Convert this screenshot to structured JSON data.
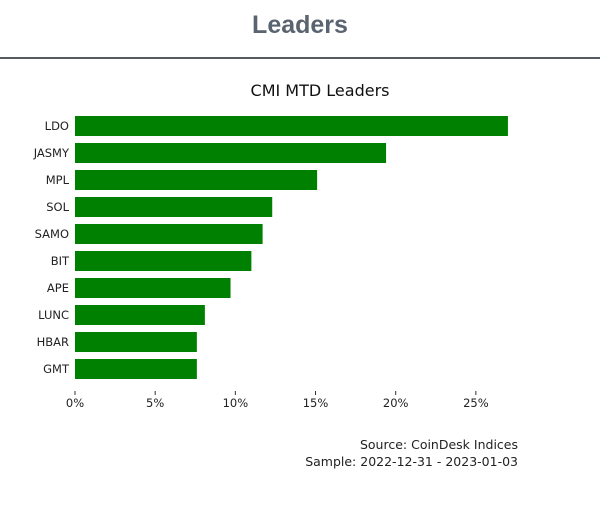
{
  "header": {
    "title": "Leaders"
  },
  "source": {
    "line1": "Source: CoinDesk Indices",
    "line2": "Sample: 2022-12-31 - 2023-01-03"
  },
  "chart_data": {
    "type": "bar",
    "orientation": "horizontal",
    "title": "CMI MTD Leaders",
    "xlabel": "",
    "ylabel": "",
    "categories": [
      "LDO",
      "JASMY",
      "MPL",
      "SOL",
      "SAMO",
      "BIT",
      "APE",
      "LUNC",
      "HBAR",
      "GMT"
    ],
    "values": [
      0.27,
      0.194,
      0.151,
      0.123,
      0.117,
      0.11,
      0.097,
      0.081,
      0.076,
      0.076
    ],
    "xlim": [
      0,
      0.29
    ],
    "xticks": [
      0,
      0.05,
      0.1,
      0.15,
      0.2,
      0.25
    ],
    "xtick_labels": [
      "0%",
      "5%",
      "10%",
      "15%",
      "20%",
      "25%"
    ],
    "bar_color": "#008000",
    "grid": false,
    "legend": false
  }
}
